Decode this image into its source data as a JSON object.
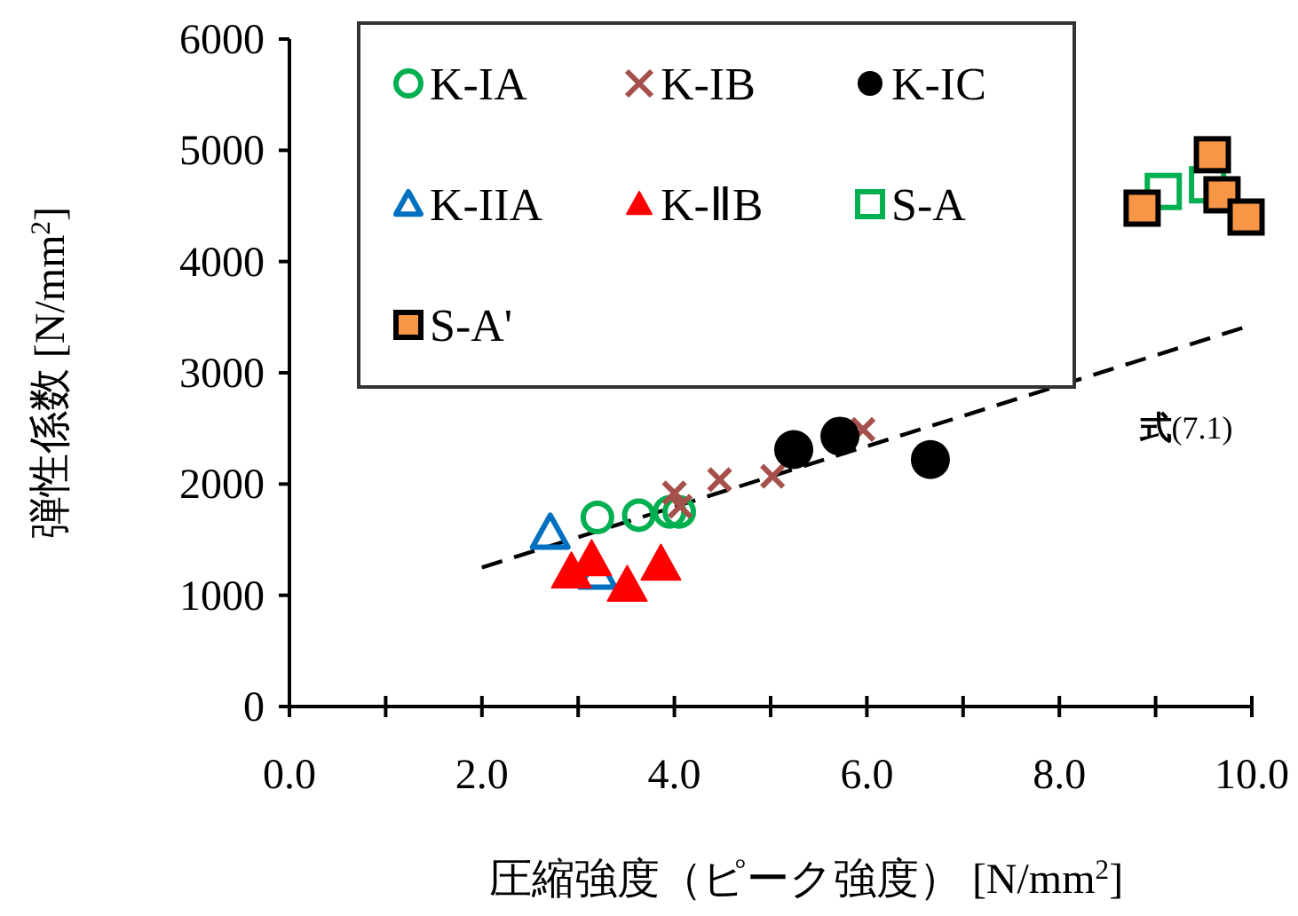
{
  "chart_data": {
    "type": "scatter",
    "xlabel": "圧縮強度（ピーク強度） [N/mm$^{2}$]",
    "ylabel": "弾性係数 [N/mm$^{2}$]",
    "xlim": [
      0,
      10
    ],
    "ylim": [
      0,
      6000
    ],
    "xticks": [
      {
        "value": 0,
        "label": "0.0"
      },
      {
        "value": 1,
        "label": null
      },
      {
        "value": 2,
        "label": "2.0"
      },
      {
        "value": 3,
        "label": null
      },
      {
        "value": 4,
        "label": "4.0"
      },
      {
        "value": 5,
        "label": null
      },
      {
        "value": 6,
        "label": "6.0"
      },
      {
        "value": 7,
        "label": null
      },
      {
        "value": 8,
        "label": "8.0"
      },
      {
        "value": 9,
        "label": null
      },
      {
        "value": 10,
        "label": "10.0"
      }
    ],
    "yticks": [
      0,
      1000,
      2000,
      3000,
      4000,
      5000,
      6000
    ],
    "legend": "top left",
    "grid": false,
    "annotations": [
      "**式**(7.1)"
    ],
    "series": [
      {
        "type": "line",
        "color": "#000000",
        "line_style": "dashed",
        "marker": "none",
        "x": [
          2.0,
          10.0
        ],
        "values": [
          1250,
          3430
        ]
      },
      {
        "name": "K-IA",
        "color": "#00b050",
        "marker": "circle",
        "x": [
          3.2,
          3.63,
          3.95,
          4.05
        ],
        "values": [
          1700,
          1720,
          1750,
          1750
        ]
      },
      {
        "name": "K-IB",
        "color": "#a5504b",
        "marker": "cross",
        "x": [
          4.0,
          4.06,
          4.47,
          5.02,
          5.96
        ],
        "values": [
          1920,
          1800,
          2040,
          2070,
          2490
        ]
      },
      {
        "name": "K-IC",
        "color": "#000000",
        "marker": "circle",
        "x": [
          5.24,
          5.72,
          6.66
        ],
        "values": [
          2310,
          2430,
          2220
        ]
      },
      {
        "name": "K-IIA",
        "color": "#0070c0",
        "marker": "triangle",
        "x": [
          2.71,
          3.2
        ],
        "values": [
          1560,
          1200
        ]
      },
      {
        "name": "K-ⅡB",
        "color": "#ff0000",
        "marker": "triangle",
        "x": [
          2.93,
          3.14,
          3.51,
          3.86
        ],
        "values": [
          1210,
          1320,
          1090,
          1280
        ]
      },
      {
        "name": "S-A",
        "color": "#00b050",
        "marker": "square",
        "x": [
          9.08,
          9.54
        ],
        "values": [
          4630,
          4690
        ]
      },
      {
        "name": "S-A'",
        "color": "#f79646",
        "marker": "square",
        "x": [
          8.86,
          9.59,
          9.69,
          9.94
        ],
        "values": [
          4480,
          4960,
          4600,
          4400
        ]
      }
    ]
  }
}
